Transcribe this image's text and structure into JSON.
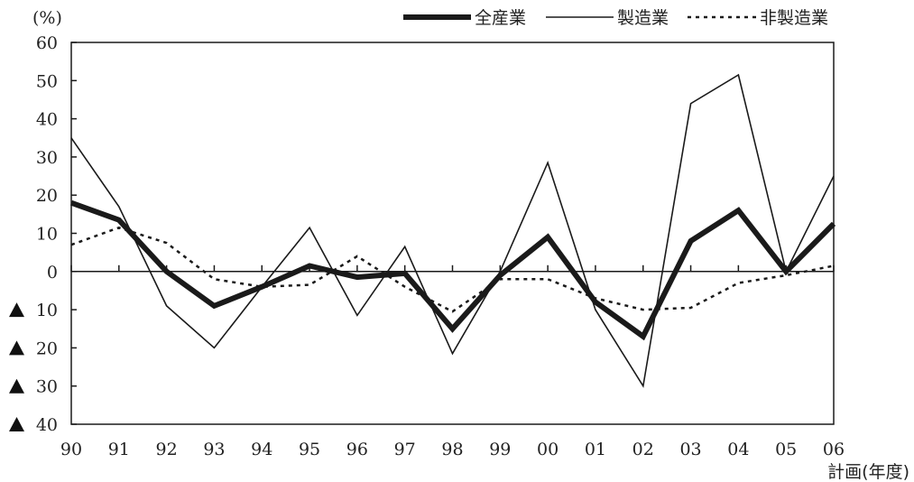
{
  "chart_data": {
    "type": "line",
    "unit_label": "(%)",
    "x_note": "計画(年度)",
    "categories": [
      "90",
      "91",
      "92",
      "93",
      "94",
      "95",
      "96",
      "97",
      "98",
      "99",
      "00",
      "01",
      "02",
      "03",
      "04",
      "05",
      "06"
    ],
    "series": [
      {
        "name": "全産業",
        "style": "thick-solid",
        "values": [
          18,
          13.5,
          0,
          -9,
          -4,
          1.5,
          -1.5,
          -0.5,
          -15,
          -1,
          9,
          -8,
          -17,
          8,
          16,
          0,
          12.5
        ]
      },
      {
        "name": "製造業",
        "style": "thin-solid",
        "values": [
          35,
          17,
          -9,
          -20,
          -4,
          11.5,
          -11.5,
          6.5,
          -21.5,
          0,
          28.5,
          -10,
          -30,
          44,
          51.5,
          0,
          25
        ]
      },
      {
        "name": "非製造業",
        "style": "dotted",
        "values": [
          7,
          11.5,
          7.5,
          -2,
          -4,
          -3.5,
          4,
          -4,
          -10.5,
          -2,
          -2,
          -7,
          -10,
          -9.5,
          -3,
          -1,
          1.5
        ]
      }
    ],
    "y_ticks": [
      {
        "value": 60,
        "label": "60",
        "negative_marker": false
      },
      {
        "value": 50,
        "label": "50",
        "negative_marker": false
      },
      {
        "value": 40,
        "label": "40",
        "negative_marker": false
      },
      {
        "value": 30,
        "label": "30",
        "negative_marker": false
      },
      {
        "value": 20,
        "label": "20",
        "negative_marker": false
      },
      {
        "value": 10,
        "label": "10",
        "negative_marker": false
      },
      {
        "value": 0,
        "label": "0",
        "negative_marker": false
      },
      {
        "value": -10,
        "label": "10",
        "negative_marker": true
      },
      {
        "value": -20,
        "label": "20",
        "negative_marker": true
      },
      {
        "value": -30,
        "label": "30",
        "negative_marker": true
      },
      {
        "value": -40,
        "label": "40",
        "negative_marker": true
      }
    ],
    "ylim": [
      -40,
      60
    ],
    "grid": false,
    "legend_position": "top-right",
    "colors": {
      "line": "#1a1a1a"
    }
  }
}
